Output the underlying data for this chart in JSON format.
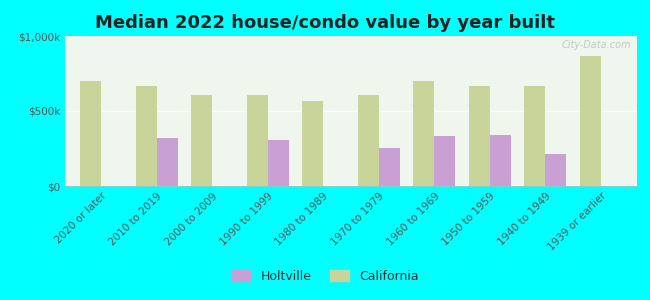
{
  "title": "Median 2022 house/condo value by year built",
  "categories": [
    "2020 or later",
    "2010 to 2019",
    "2000 to 2009",
    "1990 to 1999",
    "1980 to 1989",
    "1970 to 1979",
    "1960 to 1969",
    "1950 to 1959",
    "1940 to 1949",
    "1939 or earlier"
  ],
  "holtville_values": [
    null,
    320000,
    null,
    305000,
    null,
    255000,
    335000,
    340000,
    215000,
    null
  ],
  "california_values": [
    700000,
    670000,
    610000,
    610000,
    565000,
    610000,
    700000,
    670000,
    670000,
    870000
  ],
  "holtville_color": "#c9a0d4",
  "california_color": "#c8d49a",
  "background_color": "#00ffff",
  "plot_bg_start": "#e8f5e8",
  "plot_bg_end": "#f8fff8",
  "ylim": [
    0,
    1000000
  ],
  "ytick_labels": [
    "$0",
    "$500k",
    "$1,000k"
  ],
  "title_fontsize": 13,
  "tick_fontsize": 7.5,
  "legend_fontsize": 9,
  "watermark": "City-Data.com"
}
